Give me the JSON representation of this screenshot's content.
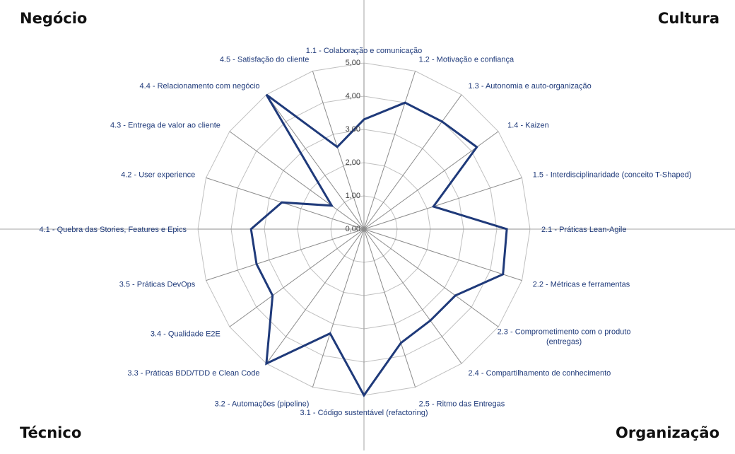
{
  "quadrants": {
    "top_left": "Negócio",
    "top_right": "Cultura",
    "bottom_left": "Técnico",
    "bottom_right": "Organização"
  },
  "colors": {
    "series": "#1f3a7a",
    "grid": "#c0c0c0",
    "labels": "#1f3a7a",
    "ticks": "#404040",
    "quadrant_lines": "#a6a6a6"
  },
  "chart_data": {
    "type": "radar",
    "rlim": [
      0,
      5
    ],
    "tick_values": [
      0,
      1,
      2,
      3,
      4,
      5
    ],
    "tick_labels": [
      "0,00",
      "1,00",
      "2,00",
      "3,00",
      "4,00",
      "5,00"
    ],
    "grid": true,
    "legend": "none",
    "categories": [
      "1.1 - Colaboração e comunicação",
      "1.2 - Motivação e confiança",
      "1.3 - Autonomia e auto-organização",
      "1.4 - Kaizen",
      "1.5 - Interdisciplinaridade (conceito T-Shaped)",
      "2.1 - Práticas Lean-Agile",
      "2.2 - Métricas e ferramentas",
      "2.3 - Comprometimento com o produto (entregas)",
      "2.4 - Compartilhamento de conhecimento",
      "2.5 - Ritmo das Entregas",
      "3.1 - Código sustentável (refactoring)",
      "3.2 - Automações (pipeline)",
      "3.3 - Práticas BDD/TDD e Clean Code",
      "3.4 - Qualidade E2E",
      "3.5 - Práticas DevOps",
      "4.1 - Quebra das Stories, Features e Epics",
      "4.2 - User experience",
      "4.3 - Entrega de valor ao cliente",
      "4.4 - Relacionamento com negócio",
      "4.5 - Satisfação do cliente"
    ],
    "series": [
      {
        "values": [
          3.3,
          4.0,
          4.0,
          4.2,
          2.2,
          4.3,
          4.4,
          3.4,
          3.4,
          3.6,
          5.0,
          3.3,
          5.0,
          3.4,
          3.4,
          3.4,
          2.6,
          1.2,
          5.0,
          2.6
        ]
      }
    ]
  }
}
